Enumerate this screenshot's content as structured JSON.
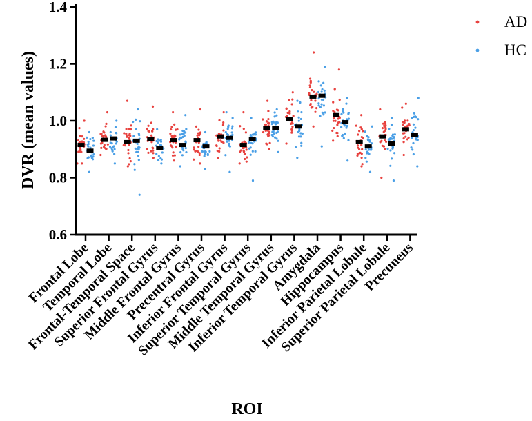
{
  "chart_data": {
    "type": "scatter",
    "title": "",
    "xlabel": "ROI",
    "ylabel": "DVR (mean values)",
    "ylim": [
      0.6,
      1.4
    ],
    "yticks": [
      "0.6",
      "0.8",
      "1.0",
      "1.2",
      "1.4"
    ],
    "legend_position": "top-right",
    "categories": [
      "Frontal Lobe",
      "Temporal Lobe",
      "Frontal-Temporal Space",
      "Superior Frontal Gyrus",
      "Middle Frontal Gyrus",
      "Precentral Gyrus",
      "Inferior Frontal Gyrus",
      "Superior Temporal Gyrus",
      "Middle Temporal Gyrus",
      "Inferior Temporal Gyrus",
      "Amygdala",
      "Hippocampus",
      "Inferior Parietal Lobule",
      "Superior Parietal Lobule",
      "Precuneus"
    ],
    "series": [
      {
        "name": "AD",
        "color": "#e8423f",
        "means": [
          0.915,
          0.933,
          0.925,
          0.935,
          0.932,
          0.932,
          0.945,
          0.915,
          0.975,
          1.005,
          1.085,
          1.02,
          0.925,
          0.945,
          0.97
        ],
        "ranges": [
          [
            0.85,
            1.0
          ],
          [
            0.88,
            1.03
          ],
          [
            0.84,
            1.07
          ],
          [
            0.87,
            1.05
          ],
          [
            0.86,
            1.03
          ],
          [
            0.85,
            1.04
          ],
          [
            0.87,
            1.03
          ],
          [
            0.85,
            1.03
          ],
          [
            0.9,
            1.07
          ],
          [
            0.92,
            1.1
          ],
          [
            0.98,
            1.24
          ],
          [
            0.93,
            1.18
          ],
          [
            0.84,
            1.02
          ],
          [
            0.8,
            1.04
          ],
          [
            0.88,
            1.06
          ]
        ]
      },
      {
        "name": "HC",
        "color": "#4a9fe6",
        "means": [
          0.895,
          0.938,
          0.93,
          0.905,
          0.915,
          0.91,
          0.94,
          0.935,
          0.975,
          0.98,
          1.088,
          0.995,
          0.91,
          0.92,
          0.95
        ],
        "ranges": [
          [
            0.82,
            0.96
          ],
          [
            0.85,
            1.0
          ],
          [
            0.74,
            1.04
          ],
          [
            0.85,
            0.97
          ],
          [
            0.84,
            1.02
          ],
          [
            0.83,
            0.96
          ],
          [
            0.82,
            1.03
          ],
          [
            0.79,
            1.01
          ],
          [
            0.89,
            1.04
          ],
          [
            0.87,
            1.07
          ],
          [
            0.91,
            1.19
          ],
          [
            0.86,
            1.08
          ],
          [
            0.82,
            0.98
          ],
          [
            0.79,
            1.01
          ],
          [
            0.84,
            1.08
          ]
        ]
      }
    ]
  }
}
